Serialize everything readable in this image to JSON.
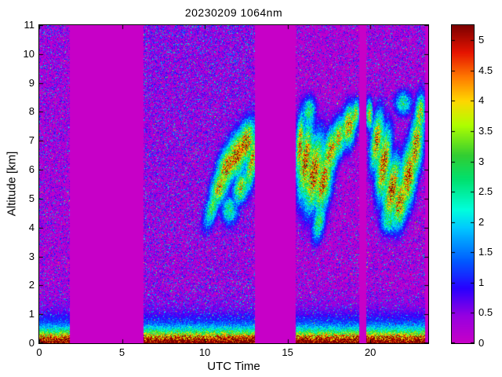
{
  "chart_data": {
    "type": "heatmap",
    "title": "20230209 1064nm",
    "xlabel": "UTC Time",
    "ylabel": "Altitude [km]",
    "xlim": [
      0,
      23.5
    ],
    "ylim": [
      0,
      11
    ],
    "xticks": [
      0,
      5,
      10,
      15,
      20
    ],
    "yticks": [
      0,
      1,
      2,
      3,
      4,
      5,
      6,
      7,
      8,
      9,
      10,
      11
    ],
    "grid": false,
    "colorbar": {
      "position": "right",
      "range": [
        0,
        5.25
      ],
      "ticks": [
        0,
        0.5,
        1,
        1.5,
        2,
        2.5,
        3,
        3.5,
        4,
        4.5,
        5
      ]
    },
    "colormap_stops": [
      [
        0.0,
        [
          199,
          0,
          199
        ]
      ],
      [
        0.45,
        [
          150,
          0,
          225
        ]
      ],
      [
        0.9,
        [
          40,
          0,
          255
        ]
      ],
      [
        1.35,
        [
          0,
          90,
          255
        ]
      ],
      [
        1.9,
        [
          0,
          200,
          255
        ]
      ],
      [
        2.2,
        [
          0,
          255,
          220
        ]
      ],
      [
        2.7,
        [
          0,
          225,
          110
        ]
      ],
      [
        3.1,
        [
          50,
          205,
          50
        ]
      ],
      [
        3.6,
        [
          175,
          255,
          0
        ]
      ],
      [
        4.0,
        [
          255,
          215,
          0
        ]
      ],
      [
        4.4,
        [
          255,
          120,
          0
        ]
      ],
      [
        4.8,
        [
          230,
          20,
          0
        ]
      ],
      [
        5.25,
        [
          125,
          0,
          0
        ]
      ]
    ],
    "background_value": 0,
    "data_start": 0,
    "data_end": 23.3,
    "data_gaps": [
      [
        1.85,
        6.3
      ],
      [
        13.05,
        15.5
      ],
      [
        19.35,
        19.75
      ]
    ],
    "boundary_layer": {
      "surface_value": 4.5,
      "depth_km": 0.38,
      "residual_value": 1.5,
      "residual_depth_km": 1.15
    },
    "noise": {
      "base_speckle_prob": 0.32,
      "lowalt_boost": 0.28,
      "daytime_interval": [
        6.3,
        13.05
      ],
      "daytime_boost": 0.3,
      "hot_pixel_prob": 0.004
    },
    "cloud_blobs": [
      [
        10.45,
        4.7,
        0.35,
        0.8,
        30,
        3.4
      ],
      [
        10.9,
        5.4,
        0.45,
        0.7,
        35,
        4.6
      ],
      [
        11.35,
        6.1,
        0.5,
        0.8,
        35,
        5.1
      ],
      [
        11.9,
        6.5,
        0.55,
        0.8,
        30,
        5.25
      ],
      [
        12.45,
        6.9,
        0.5,
        0.8,
        30,
        5.25
      ],
      [
        12.85,
        6.3,
        0.3,
        1.0,
        15,
        4.7
      ],
      [
        11.5,
        4.6,
        0.5,
        0.5,
        30,
        3.0
      ],
      [
        12.2,
        5.4,
        0.4,
        0.6,
        30,
        4.3
      ],
      [
        15.75,
        6.8,
        0.25,
        1.1,
        5,
        4.9
      ],
      [
        16.1,
        6.3,
        0.4,
        1.3,
        10,
        5.25
      ],
      [
        16.6,
        5.9,
        0.5,
        1.3,
        15,
        5.25
      ],
      [
        17.15,
        5.6,
        0.5,
        1.1,
        15,
        5.0
      ],
      [
        16.9,
        4.2,
        0.35,
        0.7,
        20,
        3.3
      ],
      [
        17.6,
        6.6,
        0.45,
        0.9,
        20,
        4.7
      ],
      [
        18.1,
        7.1,
        0.4,
        0.7,
        15,
        4.4
      ],
      [
        18.7,
        7.5,
        0.4,
        0.7,
        10,
        4.9
      ],
      [
        19.1,
        7.9,
        0.25,
        0.5,
        10,
        4.2
      ],
      [
        16.3,
        8.0,
        0.4,
        0.5,
        5,
        3.2
      ],
      [
        19.95,
        7.9,
        0.2,
        0.5,
        0,
        4.3
      ],
      [
        20.4,
        7.0,
        0.35,
        1.0,
        10,
        4.9
      ],
      [
        20.8,
        6.2,
        0.4,
        1.2,
        10,
        5.25
      ],
      [
        21.3,
        5.3,
        0.45,
        1.1,
        15,
        5.25
      ],
      [
        21.8,
        4.9,
        0.45,
        0.9,
        15,
        5.1
      ],
      [
        22.3,
        5.8,
        0.45,
        1.1,
        10,
        5.25
      ],
      [
        22.75,
        6.8,
        0.4,
        1.1,
        10,
        5.0
      ],
      [
        23.0,
        7.9,
        0.3,
        0.7,
        5,
        4.4
      ],
      [
        21.1,
        4.2,
        0.5,
        0.4,
        10,
        3.1
      ],
      [
        22.0,
        8.3,
        0.5,
        0.4,
        0,
        3.0
      ]
    ],
    "seed": 42
  }
}
